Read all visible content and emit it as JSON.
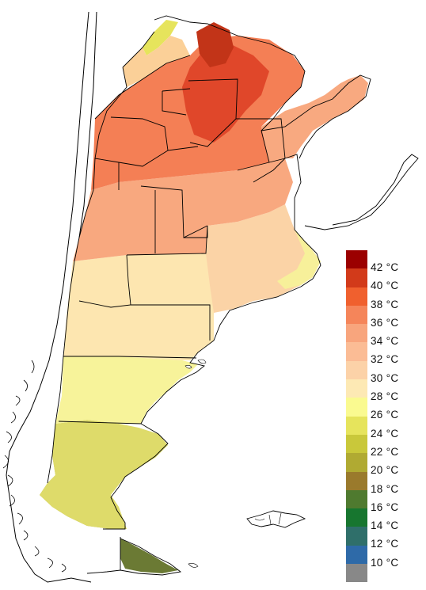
{
  "legend": {
    "unit": "°C",
    "classes": [
      {
        "label": "42 °C",
        "color": "#9b0000"
      },
      {
        "label": "40 °C",
        "color": "#d23a1a"
      },
      {
        "label": "38 °C",
        "color": "#f0602e"
      },
      {
        "label": "36 °C",
        "color": "#f5855a"
      },
      {
        "label": "34 °C",
        "color": "#f8a57d"
      },
      {
        "label": "32 °C",
        "color": "#fbbc95"
      },
      {
        "label": "30 °C",
        "color": "#fcd2a8"
      },
      {
        "label": "28 °C",
        "color": "#fde9b4"
      },
      {
        "label": "26 °C",
        "color": "#fafa90"
      },
      {
        "label": "24 °C",
        "color": "#e6e45c"
      },
      {
        "label": "22 °C",
        "color": "#c9c83a"
      },
      {
        "label": "20 °C",
        "color": "#b0aa32"
      },
      {
        "label": "18 °C",
        "color": "#9a7a2c"
      },
      {
        "label": "16 °C",
        "color": "#4f7a2f"
      },
      {
        "label": "14 °C",
        "color": "#17762f"
      },
      {
        "label": "12 °C",
        "color": "#2f6f6a"
      },
      {
        "label": "10 °C",
        "color": "#2e6aa8"
      },
      {
        "label": "",
        "color": "#888888"
      }
    ]
  },
  "colors": {
    "boundary": "#000000",
    "background": "#ffffff"
  }
}
